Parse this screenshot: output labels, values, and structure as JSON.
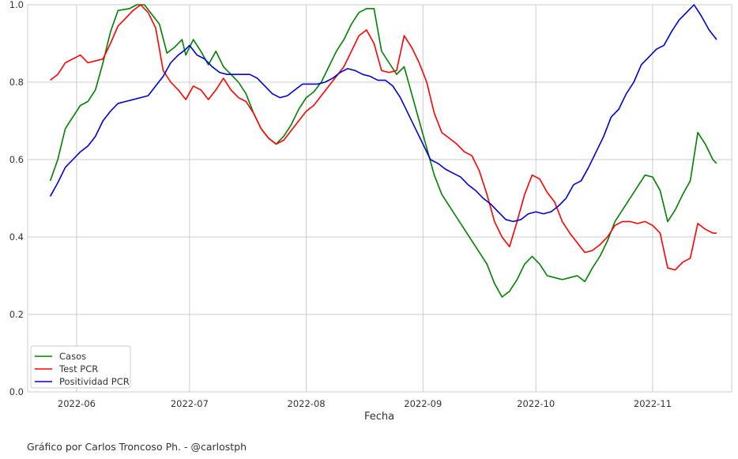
{
  "chart_data": {
    "type": "line",
    "title": "",
    "xlabel": "Fecha",
    "ylabel": "",
    "ylim": [
      0.0,
      1.0
    ],
    "xlim": [
      "2022-05-19",
      "2022-11-22"
    ],
    "grid": true,
    "legend_position": "lower-left",
    "x_ticks": [
      "2022-06",
      "2022-07",
      "2022-08",
      "2022-09",
      "2022-10",
      "2022-11"
    ],
    "y_ticks": [
      "0.0",
      "0.2",
      "0.4",
      "0.6",
      "0.8",
      "1.0"
    ],
    "series": [
      {
        "name": "Casos",
        "color": "#008000",
        "points": [
          [
            "2022-05-25",
            0.545
          ],
          [
            "2022-05-27",
            0.6
          ],
          [
            "2022-05-29",
            0.68
          ],
          [
            "2022-05-31",
            0.71
          ],
          [
            "2022-06-02",
            0.74
          ],
          [
            "2022-06-04",
            0.75
          ],
          [
            "2022-06-06",
            0.78
          ],
          [
            "2022-06-08",
            0.85
          ],
          [
            "2022-06-10",
            0.93
          ],
          [
            "2022-06-12",
            0.985
          ],
          [
            "2022-06-15",
            0.99
          ],
          [
            "2022-06-17",
            1.0
          ],
          [
            "2022-06-19",
            1.0
          ],
          [
            "2022-06-21",
            0.975
          ],
          [
            "2022-06-23",
            0.95
          ],
          [
            "2022-06-25",
            0.875
          ],
          [
            "2022-06-27",
            0.89
          ],
          [
            "2022-06-29",
            0.91
          ],
          [
            "2022-06-30",
            0.87
          ],
          [
            "2022-07-02",
            0.91
          ],
          [
            "2022-07-04",
            0.88
          ],
          [
            "2022-07-06",
            0.845
          ],
          [
            "2022-07-08",
            0.88
          ],
          [
            "2022-07-10",
            0.84
          ],
          [
            "2022-07-12",
            0.82
          ],
          [
            "2022-07-14",
            0.8
          ],
          [
            "2022-07-16",
            0.77
          ],
          [
            "2022-07-18",
            0.72
          ],
          [
            "2022-07-20",
            0.68
          ],
          [
            "2022-07-22",
            0.655
          ],
          [
            "2022-07-24",
            0.64
          ],
          [
            "2022-07-26",
            0.66
          ],
          [
            "2022-07-28",
            0.69
          ],
          [
            "2022-07-30",
            0.73
          ],
          [
            "2022-08-01",
            0.76
          ],
          [
            "2022-08-03",
            0.775
          ],
          [
            "2022-08-05",
            0.8
          ],
          [
            "2022-08-07",
            0.84
          ],
          [
            "2022-08-09",
            0.88
          ],
          [
            "2022-08-11",
            0.91
          ],
          [
            "2022-08-13",
            0.95
          ],
          [
            "2022-08-15",
            0.98
          ],
          [
            "2022-08-17",
            0.99
          ],
          [
            "2022-08-19",
            0.99
          ],
          [
            "2022-08-21",
            0.88
          ],
          [
            "2022-08-23",
            0.85
          ],
          [
            "2022-08-25",
            0.82
          ],
          [
            "2022-08-27",
            0.84
          ],
          [
            "2022-08-29",
            0.77
          ],
          [
            "2022-08-31",
            0.7
          ],
          [
            "2022-09-02",
            0.63
          ],
          [
            "2022-09-04",
            0.56
          ],
          [
            "2022-09-06",
            0.51
          ],
          [
            "2022-09-08",
            0.48
          ],
          [
            "2022-09-10",
            0.45
          ],
          [
            "2022-09-12",
            0.42
          ],
          [
            "2022-09-14",
            0.39
          ],
          [
            "2022-09-16",
            0.36
          ],
          [
            "2022-09-18",
            0.33
          ],
          [
            "2022-09-20",
            0.28
          ],
          [
            "2022-09-22",
            0.245
          ],
          [
            "2022-09-24",
            0.26
          ],
          [
            "2022-09-26",
            0.29
          ],
          [
            "2022-09-28",
            0.33
          ],
          [
            "2022-09-30",
            0.35
          ],
          [
            "2022-10-02",
            0.33
          ],
          [
            "2022-10-04",
            0.3
          ],
          [
            "2022-10-06",
            0.295
          ],
          [
            "2022-10-08",
            0.29
          ],
          [
            "2022-10-10",
            0.295
          ],
          [
            "2022-10-12",
            0.3
          ],
          [
            "2022-10-14",
            0.285
          ],
          [
            "2022-10-16",
            0.32
          ],
          [
            "2022-10-18",
            0.35
          ],
          [
            "2022-10-20",
            0.39
          ],
          [
            "2022-10-22",
            0.44
          ],
          [
            "2022-10-24",
            0.47
          ],
          [
            "2022-10-26",
            0.5
          ],
          [
            "2022-10-28",
            0.53
          ],
          [
            "2022-10-30",
            0.56
          ],
          [
            "2022-11-01",
            0.555
          ],
          [
            "2022-11-03",
            0.52
          ],
          [
            "2022-11-05",
            0.44
          ],
          [
            "2022-11-07",
            0.47
          ],
          [
            "2022-11-09",
            0.51
          ],
          [
            "2022-11-11",
            0.545
          ],
          [
            "2022-11-13",
            0.67
          ],
          [
            "2022-11-15",
            0.64
          ],
          [
            "2022-11-17",
            0.6
          ],
          [
            "2022-11-18",
            0.59
          ]
        ]
      },
      {
        "name": "Test PCR",
        "color": "#ff0000",
        "points": [
          [
            "2022-05-25",
            0.805
          ],
          [
            "2022-05-27",
            0.82
          ],
          [
            "2022-05-29",
            0.85
          ],
          [
            "2022-05-31",
            0.86
          ],
          [
            "2022-06-02",
            0.87
          ],
          [
            "2022-06-04",
            0.85
          ],
          [
            "2022-06-06",
            0.855
          ],
          [
            "2022-06-08",
            0.86
          ],
          [
            "2022-06-10",
            0.9
          ],
          [
            "2022-06-12",
            0.945
          ],
          [
            "2022-06-14",
            0.965
          ],
          [
            "2022-06-16",
            0.985
          ],
          [
            "2022-06-18",
            1.0
          ],
          [
            "2022-06-20",
            0.98
          ],
          [
            "2022-06-22",
            0.94
          ],
          [
            "2022-06-24",
            0.83
          ],
          [
            "2022-06-26",
            0.8
          ],
          [
            "2022-06-28",
            0.78
          ],
          [
            "2022-06-30",
            0.755
          ],
          [
            "2022-07-02",
            0.79
          ],
          [
            "2022-07-04",
            0.78
          ],
          [
            "2022-07-06",
            0.755
          ],
          [
            "2022-07-08",
            0.78
          ],
          [
            "2022-07-10",
            0.81
          ],
          [
            "2022-07-12",
            0.78
          ],
          [
            "2022-07-14",
            0.76
          ],
          [
            "2022-07-16",
            0.75
          ],
          [
            "2022-07-18",
            0.72
          ],
          [
            "2022-07-20",
            0.68
          ],
          [
            "2022-07-22",
            0.655
          ],
          [
            "2022-07-24",
            0.64
          ],
          [
            "2022-07-26",
            0.65
          ],
          [
            "2022-07-28",
            0.675
          ],
          [
            "2022-07-30",
            0.7
          ],
          [
            "2022-08-01",
            0.725
          ],
          [
            "2022-08-03",
            0.74
          ],
          [
            "2022-08-05",
            0.765
          ],
          [
            "2022-08-07",
            0.79
          ],
          [
            "2022-08-09",
            0.815
          ],
          [
            "2022-08-11",
            0.84
          ],
          [
            "2022-08-13",
            0.88
          ],
          [
            "2022-08-15",
            0.92
          ],
          [
            "2022-08-17",
            0.935
          ],
          [
            "2022-08-19",
            0.9
          ],
          [
            "2022-08-21",
            0.83
          ],
          [
            "2022-08-23",
            0.825
          ],
          [
            "2022-08-25",
            0.83
          ],
          [
            "2022-08-27",
            0.92
          ],
          [
            "2022-08-29",
            0.89
          ],
          [
            "2022-08-31",
            0.85
          ],
          [
            "2022-09-02",
            0.8
          ],
          [
            "2022-09-04",
            0.72
          ],
          [
            "2022-09-06",
            0.67
          ],
          [
            "2022-09-08",
            0.655
          ],
          [
            "2022-09-10",
            0.64
          ],
          [
            "2022-09-12",
            0.62
          ],
          [
            "2022-09-14",
            0.61
          ],
          [
            "2022-09-16",
            0.57
          ],
          [
            "2022-09-18",
            0.51
          ],
          [
            "2022-09-20",
            0.44
          ],
          [
            "2022-09-22",
            0.4
          ],
          [
            "2022-09-24",
            0.375
          ],
          [
            "2022-09-26",
            0.44
          ],
          [
            "2022-09-28",
            0.51
          ],
          [
            "2022-09-30",
            0.56
          ],
          [
            "2022-10-02",
            0.55
          ],
          [
            "2022-10-04",
            0.515
          ],
          [
            "2022-10-06",
            0.49
          ],
          [
            "2022-10-08",
            0.44
          ],
          [
            "2022-10-10",
            0.41
          ],
          [
            "2022-10-12",
            0.385
          ],
          [
            "2022-10-14",
            0.36
          ],
          [
            "2022-10-16",
            0.365
          ],
          [
            "2022-10-18",
            0.38
          ],
          [
            "2022-10-20",
            0.4
          ],
          [
            "2022-10-22",
            0.43
          ],
          [
            "2022-10-24",
            0.44
          ],
          [
            "2022-10-26",
            0.44
          ],
          [
            "2022-10-28",
            0.435
          ],
          [
            "2022-10-30",
            0.44
          ],
          [
            "2022-11-01",
            0.43
          ],
          [
            "2022-11-03",
            0.41
          ],
          [
            "2022-11-05",
            0.32
          ],
          [
            "2022-11-07",
            0.315
          ],
          [
            "2022-11-09",
            0.335
          ],
          [
            "2022-11-11",
            0.345
          ],
          [
            "2022-11-13",
            0.435
          ],
          [
            "2022-11-15",
            0.42
          ],
          [
            "2022-11-17",
            0.41
          ],
          [
            "2022-11-18",
            0.41
          ]
        ]
      },
      {
        "name": "Positividad PCR",
        "color": "#0000cd",
        "points": [
          [
            "2022-05-25",
            0.505
          ],
          [
            "2022-05-27",
            0.54
          ],
          [
            "2022-05-29",
            0.58
          ],
          [
            "2022-05-31",
            0.6
          ],
          [
            "2022-06-02",
            0.62
          ],
          [
            "2022-06-04",
            0.635
          ],
          [
            "2022-06-06",
            0.66
          ],
          [
            "2022-06-08",
            0.7
          ],
          [
            "2022-06-10",
            0.725
          ],
          [
            "2022-06-12",
            0.745
          ],
          [
            "2022-06-14",
            0.75
          ],
          [
            "2022-06-16",
            0.755
          ],
          [
            "2022-06-18",
            0.76
          ],
          [
            "2022-06-20",
            0.765
          ],
          [
            "2022-06-22",
            0.79
          ],
          [
            "2022-06-24",
            0.815
          ],
          [
            "2022-06-26",
            0.85
          ],
          [
            "2022-06-28",
            0.87
          ],
          [
            "2022-06-30",
            0.885
          ],
          [
            "2022-07-01",
            0.895
          ],
          [
            "2022-07-03",
            0.87
          ],
          [
            "2022-07-05",
            0.86
          ],
          [
            "2022-07-07",
            0.84
          ],
          [
            "2022-07-09",
            0.825
          ],
          [
            "2022-07-11",
            0.82
          ],
          [
            "2022-07-13",
            0.82
          ],
          [
            "2022-07-15",
            0.82
          ],
          [
            "2022-07-17",
            0.82
          ],
          [
            "2022-07-19",
            0.81
          ],
          [
            "2022-07-21",
            0.79
          ],
          [
            "2022-07-23",
            0.77
          ],
          [
            "2022-07-25",
            0.76
          ],
          [
            "2022-07-27",
            0.765
          ],
          [
            "2022-07-29",
            0.78
          ],
          [
            "2022-07-31",
            0.795
          ],
          [
            "2022-08-02",
            0.795
          ],
          [
            "2022-08-04",
            0.795
          ],
          [
            "2022-08-06",
            0.8
          ],
          [
            "2022-08-08",
            0.81
          ],
          [
            "2022-08-10",
            0.825
          ],
          [
            "2022-08-12",
            0.835
          ],
          [
            "2022-08-14",
            0.83
          ],
          [
            "2022-08-16",
            0.82
          ],
          [
            "2022-08-18",
            0.815
          ],
          [
            "2022-08-20",
            0.805
          ],
          [
            "2022-08-22",
            0.805
          ],
          [
            "2022-08-24",
            0.79
          ],
          [
            "2022-08-26",
            0.76
          ],
          [
            "2022-08-28",
            0.72
          ],
          [
            "2022-08-30",
            0.68
          ],
          [
            "2022-09-01",
            0.64
          ],
          [
            "2022-09-03",
            0.6
          ],
          [
            "2022-09-05",
            0.59
          ],
          [
            "2022-09-07",
            0.575
          ],
          [
            "2022-09-09",
            0.565
          ],
          [
            "2022-09-11",
            0.555
          ],
          [
            "2022-09-13",
            0.535
          ],
          [
            "2022-09-15",
            0.52
          ],
          [
            "2022-09-17",
            0.5
          ],
          [
            "2022-09-19",
            0.485
          ],
          [
            "2022-09-21",
            0.465
          ],
          [
            "2022-09-23",
            0.445
          ],
          [
            "2022-09-25",
            0.44
          ],
          [
            "2022-09-27",
            0.445
          ],
          [
            "2022-09-29",
            0.46
          ],
          [
            "2022-10-01",
            0.465
          ],
          [
            "2022-10-03",
            0.46
          ],
          [
            "2022-10-05",
            0.465
          ],
          [
            "2022-10-07",
            0.48
          ],
          [
            "2022-10-09",
            0.5
          ],
          [
            "2022-10-11",
            0.535
          ],
          [
            "2022-10-13",
            0.545
          ],
          [
            "2022-10-15",
            0.58
          ],
          [
            "2022-10-17",
            0.62
          ],
          [
            "2022-10-19",
            0.66
          ],
          [
            "2022-10-21",
            0.71
          ],
          [
            "2022-10-23",
            0.73
          ],
          [
            "2022-10-25",
            0.77
          ],
          [
            "2022-10-27",
            0.8
          ],
          [
            "2022-10-29",
            0.845
          ],
          [
            "2022-10-31",
            0.865
          ],
          [
            "2022-11-02",
            0.885
          ],
          [
            "2022-11-04",
            0.895
          ],
          [
            "2022-11-06",
            0.93
          ],
          [
            "2022-11-08",
            0.96
          ],
          [
            "2022-11-10",
            0.98
          ],
          [
            "2022-11-12",
            1.0
          ],
          [
            "2022-11-14",
            0.97
          ],
          [
            "2022-11-16",
            0.935
          ],
          [
            "2022-11-18",
            0.91
          ]
        ]
      }
    ]
  },
  "credit": "Gráfico por Carlos Troncoso Ph. - @carlostph"
}
